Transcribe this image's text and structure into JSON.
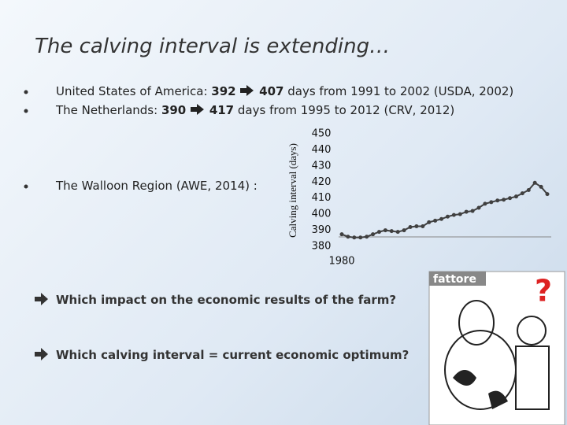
{
  "slide": {
    "title": "The calving interval is extending…",
    "bullets": [
      {
        "label": "United States of America:",
        "from": "392",
        "to": "407",
        "rest": "days  from 1991 to 2002 (USDA, 2002)"
      },
      {
        "label": "The Netherlands:",
        "from": "390",
        "to": "417",
        "rest": "days from 1995 to 2012 (CRV, 2012)"
      },
      {
        "label": "The Walloon Region (AWE, 2014) :"
      }
    ],
    "questions": [
      "Which impact on the economic results of the farm?",
      "Which calving interval = current economic optimum?"
    ],
    "image_text": "fattore",
    "image_mark": "?"
  },
  "chart_data": {
    "type": "line",
    "y_label": "Calving interval (days)",
    "categories": [
      "1980",
      null,
      null,
      null,
      null,
      null,
      null,
      null,
      null,
      null,
      null,
      null,
      null,
      null,
      null,
      null,
      null,
      null,
      null,
      null,
      null,
      null,
      null,
      null,
      null,
      null,
      null,
      null,
      null,
      null,
      null,
      null,
      null,
      null
    ],
    "series": [
      {
        "name": "Calving interval",
        "color": "#404040",
        "values": [
          387.5,
          386,
          385.5,
          385.5,
          386,
          387.5,
          389,
          390,
          389.5,
          389,
          390,
          392,
          392.5,
          392.5,
          395,
          396,
          397,
          398.5,
          399.5,
          400,
          401.5,
          402,
          404,
          406.5,
          407.5,
          408.5,
          409,
          410,
          411,
          413,
          415,
          419.5,
          417,
          412.5
        ]
      }
    ],
    "ylim": [
      380,
      450
    ],
    "yticks": [
      380,
      390,
      400,
      410,
      420,
      430,
      440,
      450
    ]
  }
}
